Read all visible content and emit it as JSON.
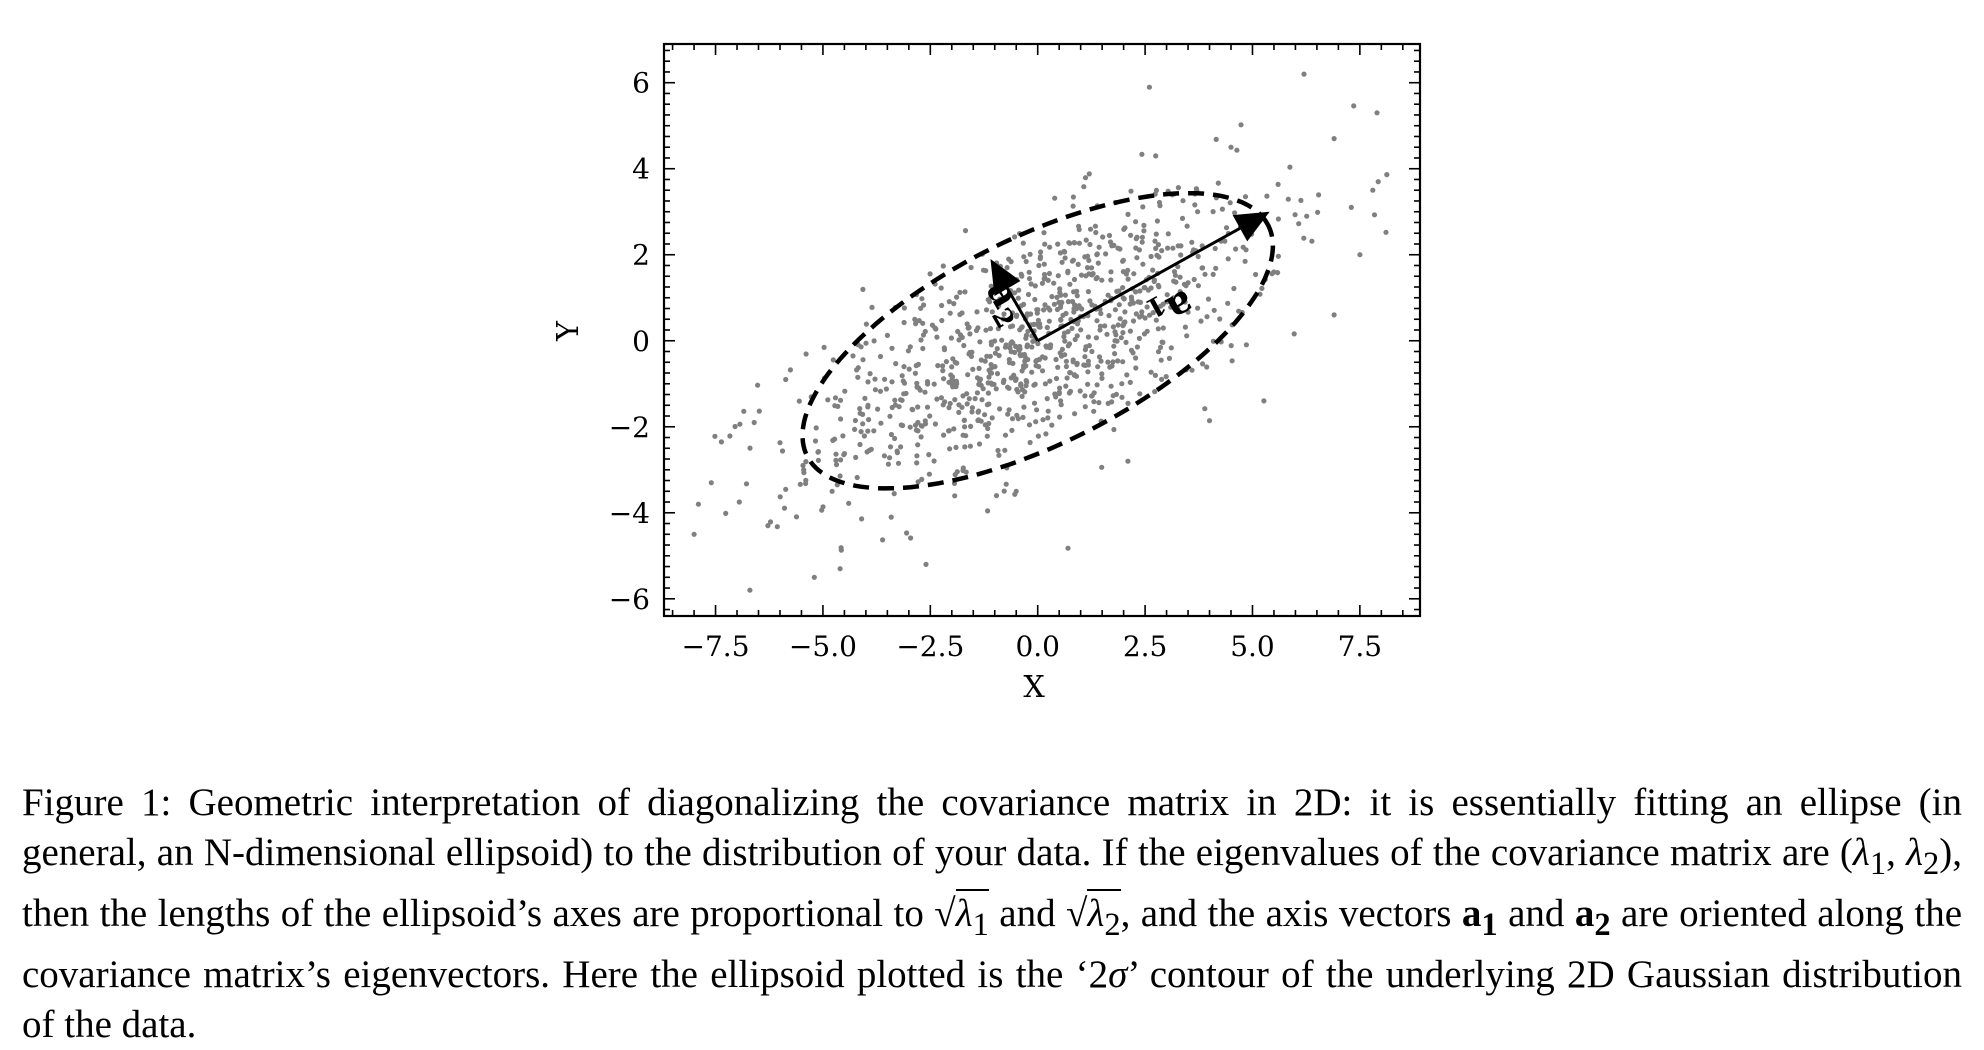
{
  "chart_data": {
    "type": "scatter",
    "title": "",
    "xlabel": "X",
    "ylabel": "Y",
    "xlim": [
      -8.7,
      8.9
    ],
    "ylim": [
      -6.4,
      6.9
    ],
    "xticks": [
      -7.5,
      -5.0,
      -2.5,
      0.0,
      2.5,
      5.0,
      7.5
    ],
    "xtick_labels": [
      "−7.5",
      "−5.0",
      "−2.5",
      "0.0",
      "2.5",
      "5.0",
      "7.5"
    ],
    "yticks": [
      -6,
      -4,
      -2,
      0,
      2,
      4,
      6
    ],
    "ytick_labels": [
      "−6",
      "−4",
      "−2",
      "0",
      "2",
      "4",
      "6"
    ],
    "grid": false,
    "points_color": "#808080",
    "points_approx_count": 1000,
    "points_description": "2D Gaussian, mean (0,0), principal std ~3.0 at ~26.5 deg, minor std ~1.2",
    "outlier_points": [
      {
        "x": 6.2,
        "y": 6.2
      },
      {
        "x": 7.9,
        "y": 5.3
      },
      {
        "x": 6.9,
        "y": 4.7
      },
      {
        "x": 7.8,
        "y": 3.5
      },
      {
        "x": 7.5,
        "y": 2.0
      },
      {
        "x": 6.9,
        "y": 0.6
      },
      {
        "x": 4.5,
        "y": 4.5
      },
      {
        "x": 7.3,
        "y": 3.1
      },
      {
        "x": -8.0,
        "y": -4.5
      },
      {
        "x": -7.9,
        "y": -3.8
      },
      {
        "x": -6.7,
        "y": -5.8
      },
      {
        "x": -5.2,
        "y": -5.5
      },
      {
        "x": -2.6,
        "y": -5.2
      },
      {
        "x": -4.6,
        "y": -5.3
      },
      {
        "x": -7.6,
        "y": -3.3
      },
      {
        "x": -6.6,
        "y": -1.9
      },
      {
        "x": 2.1,
        "y": -2.8
      },
      {
        "x": -0.5,
        "y": -3.5
      }
    ],
    "ellipse": {
      "center": [
        0,
        0
      ],
      "half_axis_major": 6.0,
      "half_axis_minor": 2.4,
      "angle_deg": 26.5,
      "line_style": "dashed",
      "label": "2σ contour"
    },
    "vectors": [
      {
        "name": "a1",
        "from": [
          0,
          0
        ],
        "to": [
          5.4,
          3.0
        ],
        "label": "a",
        "subscript": "1"
      },
      {
        "name": "a2",
        "from": [
          0,
          0
        ],
        "to": [
          -1.1,
          1.9
        ],
        "label": "a",
        "subscript": "2"
      }
    ]
  },
  "caption": {
    "prefix": "Figure 1:",
    "part1": "Geometric interpretation of diagonalizing the covariance matrix in 2D: it is essentially fitting an ellipse (in general, an N-dimensional ellipsoid) to the distribution of your data. If the eigenvalues of the covariance matrix are (",
    "lambda1": "λ",
    "sub1": "1",
    "comma": ", ",
    "lambda2": "λ",
    "sub2": "2",
    "part2": "), then the lengths of the ellipsoid’s axes are proportional to ",
    "sqrt_sign1": "√",
    "sqrt_arg1": "λ",
    "sqrt_sub1": "1",
    "and1": " and ",
    "sqrt_sign2": "√",
    "sqrt_arg2": "λ",
    "sqrt_sub2": "2",
    "part3": ", and the axis vectors ",
    "vec1": "a",
    "vec1_sub": "1",
    "and2": " and ",
    "vec2": "a",
    "vec2_sub": "2",
    "part4": " are oriented along the covariance matrix’s eigenvectors. Here the ellipsoid plotted is the ‘2",
    "sigma": "σ",
    "part5": "’ contour of the underlying 2D Gaussian distribution of the data."
  }
}
